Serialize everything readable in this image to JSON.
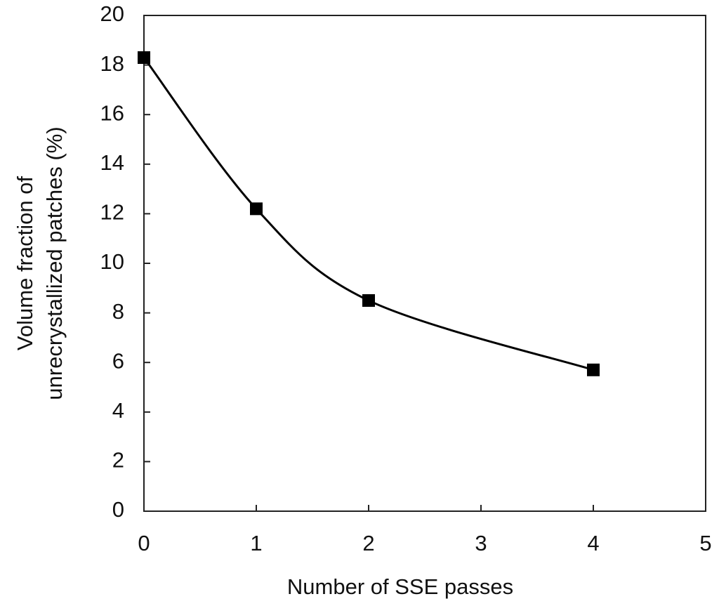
{
  "chart_data": {
    "type": "line",
    "xlabel": "Number of SSE passes",
    "ylabel": [
      "Volume fraction of",
      "unrecrystallized patches (%)"
    ],
    "x": [
      0,
      1,
      2,
      4
    ],
    "values": [
      18.3,
      12.2,
      8.5,
      5.7
    ],
    "color": "#000000",
    "smooth": true,
    "marker": "square",
    "grid": false,
    "xlim": [
      0,
      5
    ],
    "xticks": [
      0,
      1,
      2,
      3,
      4,
      5
    ],
    "ylim": [
      0,
      20
    ],
    "yticks": [
      0,
      2,
      4,
      6,
      8,
      10,
      12,
      14,
      16,
      18,
      20
    ]
  }
}
